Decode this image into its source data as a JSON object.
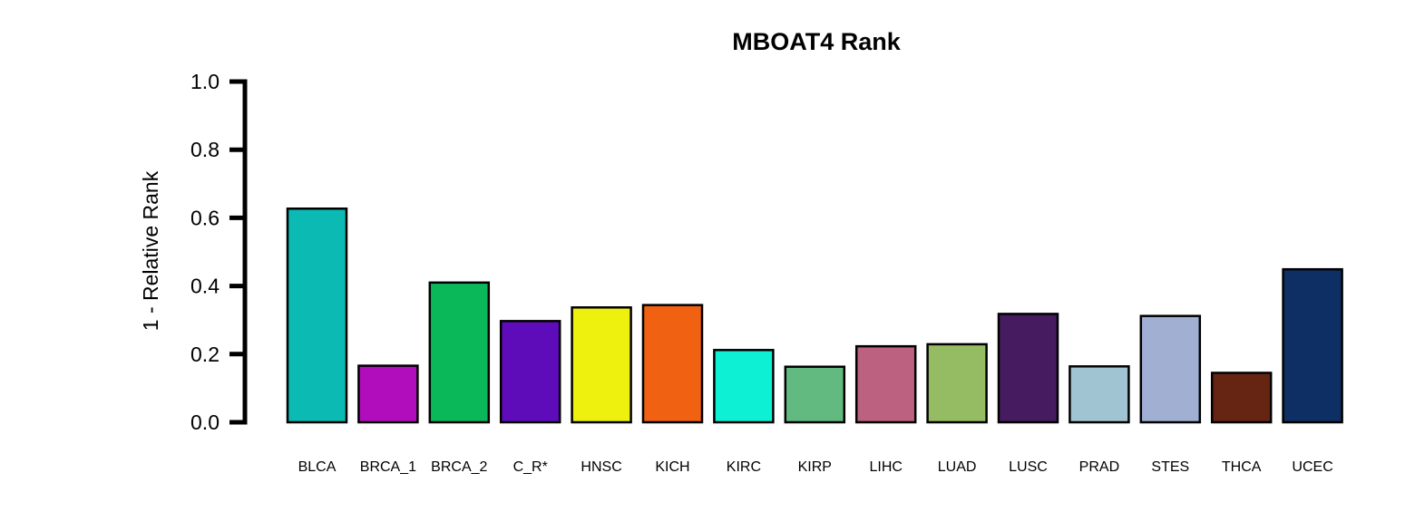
{
  "chart_data": {
    "type": "bar",
    "title": "MBOAT4 Rank",
    "xlabel": "",
    "ylabel": "1 - Relative Rank",
    "ylim": [
      0,
      1
    ],
    "yticks": [
      "0.0",
      "0.2",
      "0.4",
      "0.6",
      "0.8",
      "1.0"
    ],
    "ytick_values": [
      0,
      0.2,
      0.4,
      0.6,
      0.8,
      1.0
    ],
    "grid": false,
    "legend": "none",
    "categories": [
      "BLCA",
      "BRCA_1",
      "BRCA_2",
      "C_R*",
      "HNSC",
      "KICH",
      "KIRC",
      "KIRP",
      "LIHC",
      "LUAD",
      "LUSC",
      "PRAD",
      "STES",
      "THCA",
      "UCEC"
    ],
    "values": [
      0.627,
      0.166,
      0.41,
      0.297,
      0.337,
      0.344,
      0.212,
      0.163,
      0.223,
      0.229,
      0.318,
      0.164,
      0.312,
      0.145,
      0.449
    ],
    "colors": [
      "#0BBAB3",
      "#B20DBC",
      "#0AB85A",
      "#5E0BBA",
      "#EEF00E",
      "#F06112",
      "#0EF0D4",
      "#62BA80",
      "#BD6180",
      "#96BC63",
      "#461B5F",
      "#A1C4D2",
      "#A0AFD2",
      "#652512",
      "#0E2F63"
    ],
    "bar_edge_color": "#000000",
    "axis_color": "#000000"
  }
}
